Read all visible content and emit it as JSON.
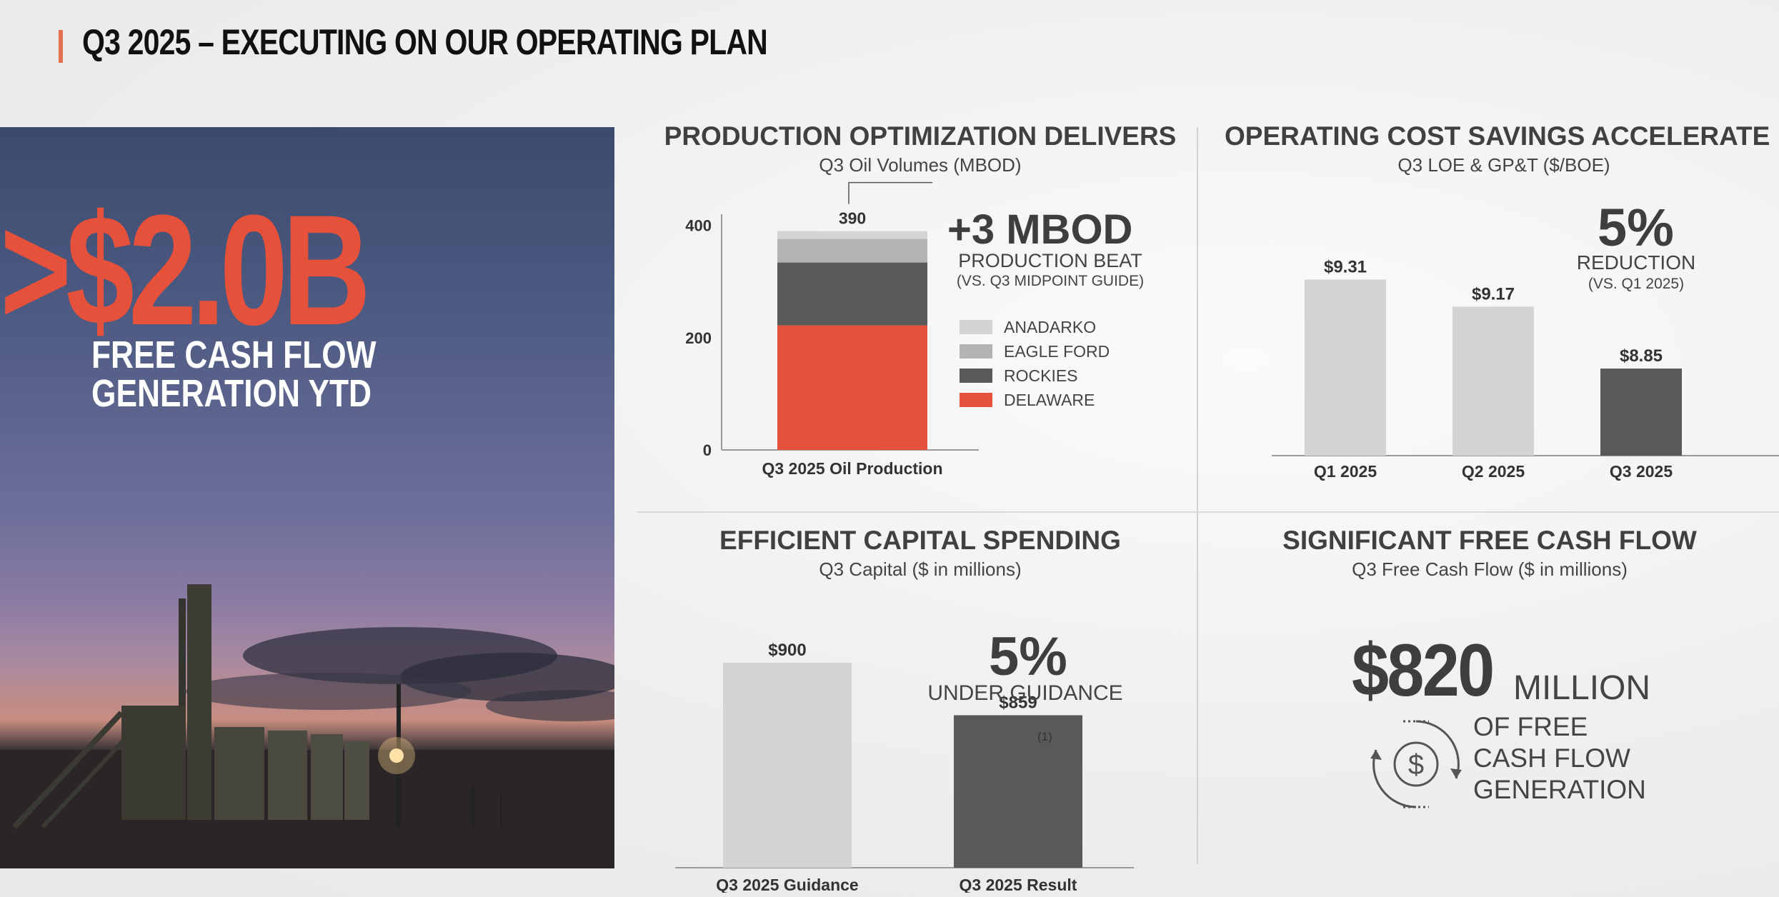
{
  "header": {
    "title": "Q3 2025 – EXECUTING ON OUR OPERATING PLAN"
  },
  "hero": {
    "amount": ">$2.0B",
    "caption_line1": "FREE CASH FLOW",
    "caption_line2": "GENERATION YTD"
  },
  "panels": {
    "production": {
      "title": "PRODUCTION OPTIMIZATION DELIVERS",
      "subtitle": "Q3 Oil Volumes (MBOD)",
      "callout_value": "+3 MBOD",
      "callout_line1": "PRODUCTION BEAT",
      "callout_line2": "(VS. Q3 MIDPOINT GUIDE)"
    },
    "operating_cost": {
      "title": "OPERATING COST SAVINGS ACCELERATE",
      "subtitle": "Q3 LOE & GP&T ($/BOE)",
      "callout_value": "5%",
      "callout_line1": "REDUCTION",
      "callout_line2": "(VS. Q1 2025)"
    },
    "capital": {
      "title": "EFFICIENT CAPITAL SPENDING",
      "subtitle": "Q3 Capital ($ in millions)",
      "callout_value": "5%",
      "callout_line1": "UNDER GUIDANCE",
      "footnote": "(1)"
    },
    "free_cash_flow": {
      "title": "SIGNIFICANT FREE CASH FLOW",
      "subtitle": "Q3 Free Cash Flow ($ in millions)",
      "value": "$820",
      "unit": "MILLION",
      "line1": "OF FREE",
      "line2": "CASH FLOW",
      "line3": "GENERATION",
      "icon": "dollar-cycle-icon"
    }
  },
  "chart_data": [
    {
      "type": "bar",
      "stacked": true,
      "categories": [
        "Q3 2025 Oil Production"
      ],
      "series": [
        {
          "name": "DELAWARE",
          "values": [
            222
          ],
          "color": "#e5513a"
        },
        {
          "name": "ROCKIES",
          "values": [
            112
          ],
          "color": "#595959"
        },
        {
          "name": "EAGLE FORD",
          "values": [
            42
          ],
          "color": "#b3b3b3"
        },
        {
          "name": "ANADARKO",
          "values": [
            14
          ],
          "color": "#d4d4d4"
        }
      ],
      "total_label": "390",
      "yticks": [
        0,
        200,
        400
      ],
      "ylim": [
        0,
        420
      ],
      "legend": "right"
    },
    {
      "type": "bar",
      "categories": [
        "Q1 2025",
        "Q2 2025",
        "Q3 2025"
      ],
      "values": [
        9.31,
        9.17,
        8.85
      ],
      "labels": [
        "$9.31",
        "$9.17",
        "$8.85"
      ],
      "colors": [
        "#d4d4d4",
        "#d4d4d4",
        "#595959"
      ],
      "ylim": [
        8.4,
        9.5
      ]
    },
    {
      "type": "bar",
      "categories": [
        "Q3 2025 Guidance",
        "Q3 2025 Result"
      ],
      "values": [
        900,
        859
      ],
      "labels": [
        "$900",
        "$859"
      ],
      "colors": [
        "#d4d4d4",
        "#595959"
      ],
      "ylim": [
        740,
        910
      ]
    }
  ]
}
